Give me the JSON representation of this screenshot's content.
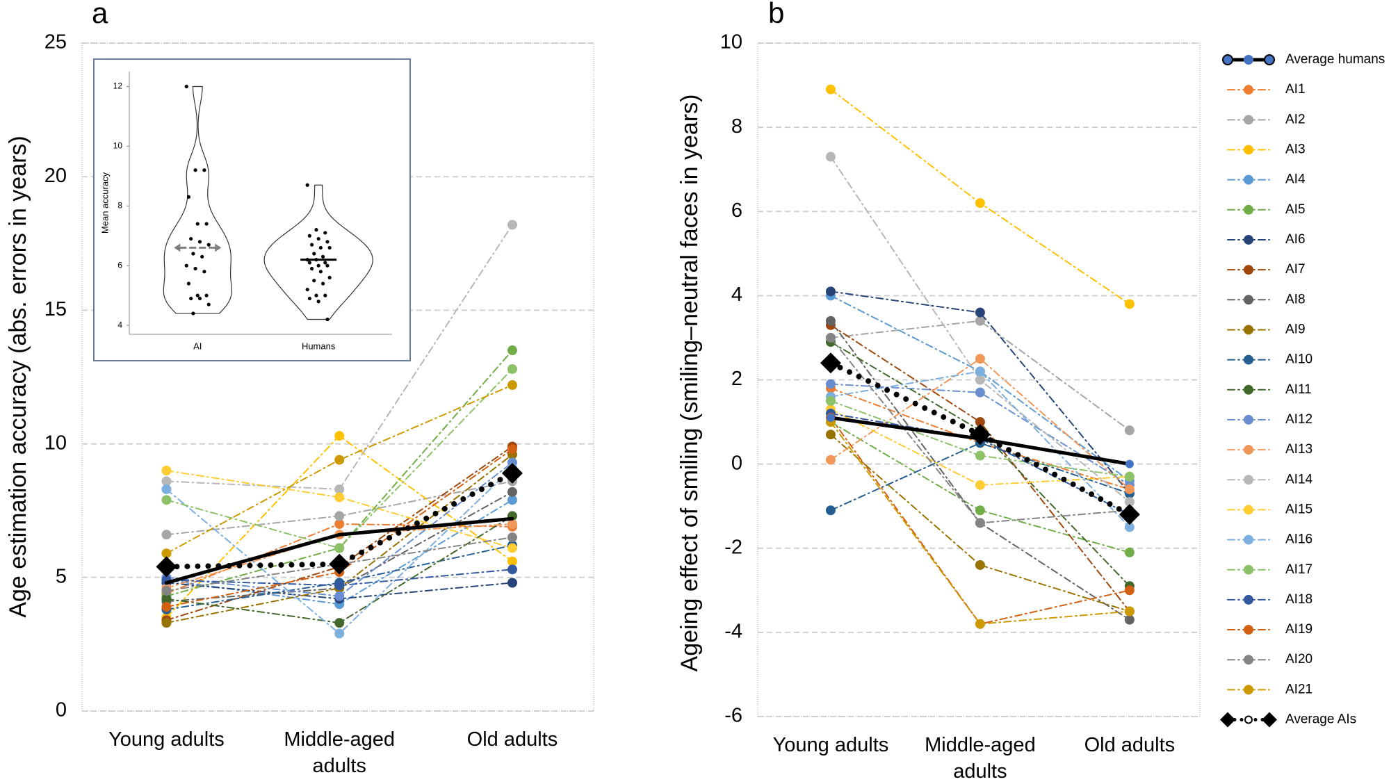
{
  "chart_data": [
    {
      "type": "line",
      "panel_label": "a",
      "y_label": "Age estimation accuracy (abs. errors in years)",
      "categories": [
        "Young adults",
        "Middle-aged adults",
        "Old adults"
      ],
      "ylim": [
        0,
        25
      ],
      "yticks": [
        0,
        5,
        10,
        15,
        20,
        25
      ],
      "grid": true,
      "series": [
        {
          "name": "Average humans",
          "color": "#000000",
          "line_style": "solid",
          "marker": "none",
          "values": [
            4.8,
            6.6,
            7.2
          ]
        },
        {
          "name": "AI1",
          "color": "#ed7d31",
          "line_style": "dashdot",
          "marker": "circle",
          "values": [
            4.4,
            7.0,
            6.9
          ]
        },
        {
          "name": "AI2",
          "color": "#a5a5a5",
          "line_style": "dashdot",
          "marker": "circle",
          "values": [
            6.6,
            7.3,
            8.6
          ]
        },
        {
          "name": "AI3",
          "color": "#ffc000",
          "line_style": "dashdot",
          "marker": "circle",
          "values": [
            3.5,
            10.3,
            5.6
          ]
        },
        {
          "name": "AI4",
          "color": "#5b9bd5",
          "line_style": "dashdot",
          "marker": "circle",
          "values": [
            4.9,
            4.0,
            7.9
          ]
        },
        {
          "name": "AI5",
          "color": "#70ad47",
          "line_style": "dashdot",
          "marker": "circle",
          "values": [
            4.3,
            6.1,
            13.5
          ]
        },
        {
          "name": "AI6",
          "color": "#264478",
          "line_style": "dashdot",
          "marker": "circle",
          "values": [
            4.8,
            4.2,
            4.8
          ]
        },
        {
          "name": "AI7",
          "color": "#9e480e",
          "line_style": "dashdot",
          "marker": "circle",
          "values": [
            3.4,
            5.4,
            9.9
          ]
        },
        {
          "name": "AI8",
          "color": "#636363",
          "line_style": "dashdot",
          "marker": "circle",
          "values": [
            4.1,
            4.6,
            8.2
          ]
        },
        {
          "name": "AI9",
          "color": "#997300",
          "line_style": "dashdot",
          "marker": "circle",
          "values": [
            3.3,
            4.6,
            9.6
          ]
        },
        {
          "name": "AI10",
          "color": "#255e91",
          "line_style": "dashdot",
          "marker": "circle",
          "values": [
            3.8,
            4.8,
            6.2
          ]
        },
        {
          "name": "AI11",
          "color": "#43682b",
          "line_style": "dashdot",
          "marker": "circle",
          "values": [
            4.2,
            3.3,
            7.3
          ]
        },
        {
          "name": "AI12",
          "color": "#698ed0",
          "line_style": "dashdot",
          "marker": "circle",
          "values": [
            5.0,
            4.3,
            9.3
          ]
        },
        {
          "name": "AI13",
          "color": "#f1975a",
          "line_style": "dashdot",
          "marker": "circle",
          "values": [
            4.6,
            6.6,
            7.0
          ]
        },
        {
          "name": "AI14",
          "color": "#b7b7b7",
          "line_style": "dashdot",
          "marker": "circle",
          "values": [
            8.6,
            8.3,
            18.2
          ]
        },
        {
          "name": "AI15",
          "color": "#ffcd33",
          "line_style": "dashdot",
          "marker": "circle",
          "values": [
            9.0,
            8.0,
            6.1
          ]
        },
        {
          "name": "AI16",
          "color": "#7cafdd",
          "line_style": "dashdot",
          "marker": "circle",
          "values": [
            8.3,
            2.9,
            9.1
          ]
        },
        {
          "name": "AI17",
          "color": "#8cc168",
          "line_style": "dashdot",
          "marker": "circle",
          "values": [
            7.9,
            6.1,
            12.8
          ]
        },
        {
          "name": "AI18",
          "color": "#335aa1",
          "line_style": "dashdot",
          "marker": "circle",
          "values": [
            4.9,
            4.7,
            5.3
          ]
        },
        {
          "name": "AI19",
          "color": "#d26012",
          "line_style": "dashdot",
          "marker": "circle",
          "values": [
            3.9,
            5.2,
            9.8
          ]
        },
        {
          "name": "AI20",
          "color": "#848484",
          "line_style": "dashdot",
          "marker": "circle",
          "values": [
            4.5,
            5.5,
            6.5
          ]
        },
        {
          "name": "AI21",
          "color": "#cc9a00",
          "line_style": "dashdot",
          "marker": "circle",
          "values": [
            5.9,
            9.4,
            12.2
          ]
        },
        {
          "name": "Average AIs",
          "color": "#000000",
          "line_style": "dotted",
          "marker": "diamond",
          "values": [
            5.4,
            5.5,
            8.9
          ]
        }
      ]
    },
    {
      "type": "line",
      "panel_label": "b",
      "y_label": "Ageing effect of smiling (smiling–neutral faces in years)",
      "categories": [
        "Young adults",
        "Middle-aged adults",
        "Old adults"
      ],
      "ylim": [
        -6,
        10
      ],
      "yticks": [
        -6,
        -4,
        -2,
        0,
        2,
        4,
        6,
        8,
        10
      ],
      "grid": true,
      "legend": "right",
      "series": [
        {
          "name": "Average humans",
          "color": "#000000",
          "marker_color": "#4472c4",
          "line_style": "solid",
          "marker": "circle",
          "values": [
            1.1,
            0.6,
            0.0
          ]
        },
        {
          "name": "AI1",
          "color": "#ed7d31",
          "line_style": "dashdot",
          "marker": "circle",
          "values": [
            1.8,
            0.5,
            -0.6
          ]
        },
        {
          "name": "AI2",
          "color": "#a5a5a5",
          "line_style": "dashdot",
          "marker": "circle",
          "values": [
            3.0,
            3.4,
            0.8
          ]
        },
        {
          "name": "AI3",
          "color": "#ffc000",
          "line_style": "dashdot",
          "marker": "circle",
          "values": [
            8.9,
            6.2,
            3.8
          ]
        },
        {
          "name": "AI4",
          "color": "#5b9bd5",
          "line_style": "dashdot",
          "marker": "circle",
          "values": [
            4.0,
            2.2,
            -0.4
          ]
        },
        {
          "name": "AI5",
          "color": "#70ad47",
          "line_style": "dashdot",
          "marker": "circle",
          "values": [
            1.0,
            -1.1,
            -2.1
          ]
        },
        {
          "name": "AI6",
          "color": "#264478",
          "line_style": "dashdot",
          "marker": "circle",
          "values": [
            4.1,
            3.6,
            -0.7
          ]
        },
        {
          "name": "AI7",
          "color": "#9e480e",
          "line_style": "dashdot",
          "marker": "circle",
          "values": [
            3.3,
            1.0,
            -3.5
          ]
        },
        {
          "name": "AI8",
          "color": "#636363",
          "line_style": "dashdot",
          "marker": "circle",
          "values": [
            3.4,
            -1.4,
            -3.7
          ]
        },
        {
          "name": "AI9",
          "color": "#997300",
          "line_style": "dashdot",
          "marker": "circle",
          "values": [
            0.7,
            -2.4,
            -3.5
          ]
        },
        {
          "name": "AI10",
          "color": "#255e91",
          "line_style": "dashdot",
          "marker": "circle",
          "values": [
            -1.1,
            0.5,
            -0.7
          ]
        },
        {
          "name": "AI11",
          "color": "#43682b",
          "line_style": "dashdot",
          "marker": "circle",
          "values": [
            2.9,
            0.8,
            -2.9
          ]
        },
        {
          "name": "AI12",
          "color": "#698ed0",
          "line_style": "dashdot",
          "marker": "circle",
          "values": [
            1.9,
            1.7,
            -0.5
          ]
        },
        {
          "name": "AI13",
          "color": "#f1975a",
          "line_style": "dashdot",
          "marker": "circle",
          "values": [
            0.1,
            2.5,
            -0.6
          ]
        },
        {
          "name": "AI14",
          "color": "#b7b7b7",
          "line_style": "dashdot",
          "marker": "circle",
          "values": [
            7.3,
            2.0,
            -0.9
          ]
        },
        {
          "name": "AI15",
          "color": "#ffcd33",
          "line_style": "dashdot",
          "marker": "circle",
          "values": [
            1.3,
            -0.5,
            -0.3
          ]
        },
        {
          "name": "AI16",
          "color": "#7cafdd",
          "line_style": "dashdot",
          "marker": "circle",
          "values": [
            1.6,
            2.2,
            -1.5
          ]
        },
        {
          "name": "AI17",
          "color": "#8cc168",
          "line_style": "dashdot",
          "marker": "circle",
          "values": [
            1.5,
            0.2,
            -0.3
          ]
        },
        {
          "name": "AI18",
          "color": "#335aa1",
          "line_style": "dashdot",
          "marker": "circle",
          "values": [
            1.2,
            0.6,
            -1.2
          ]
        },
        {
          "name": "AI19",
          "color": "#d26012",
          "line_style": "dashdot",
          "marker": "circle",
          "values": [
            1.1,
            -3.8,
            -3.0
          ]
        },
        {
          "name": "AI20",
          "color": "#848484",
          "line_style": "dashdot",
          "marker": "circle",
          "values": [
            3.0,
            -1.4,
            -1.1
          ]
        },
        {
          "name": "AI21",
          "color": "#cc9a00",
          "line_style": "dashdot",
          "marker": "circle",
          "values": [
            1.0,
            -3.8,
            -3.5
          ]
        },
        {
          "name": "Average AIs",
          "color": "#000000",
          "line_style": "dotted",
          "marker": "diamond",
          "values": [
            2.4,
            0.7,
            -1.2
          ]
        }
      ]
    },
    {
      "type": "violin",
      "y_label": "Mean accuracy",
      "categories": [
        "AI",
        "Humans"
      ],
      "ylim": [
        3.7,
        12.5
      ],
      "yticks": [
        4,
        6,
        8,
        10,
        12
      ],
      "points": [
        [
          12.0,
          9.2,
          9.2,
          8.3,
          7.4,
          7.4,
          6.9,
          6.8,
          6.7,
          6.4,
          6.3,
          6.0,
          5.9,
          5.8,
          5.4,
          5.0,
          5.0,
          4.9,
          4.9,
          4.7,
          4.4
        ],
        [
          8.7,
          7.2,
          7.1,
          7.0,
          6.9,
          6.8,
          6.7,
          6.6,
          6.6,
          6.4,
          6.3,
          6.2,
          6.2,
          6.1,
          6.1,
          6.0,
          6.0,
          5.9,
          5.8,
          5.6,
          5.5,
          5.4,
          5.2,
          5.0,
          5.0,
          4.9,
          4.8,
          4.2
        ]
      ],
      "means": [
        6.6,
        6.2
      ],
      "mean_colors": [
        "#7f7f7f",
        "#000000"
      ]
    }
  ]
}
